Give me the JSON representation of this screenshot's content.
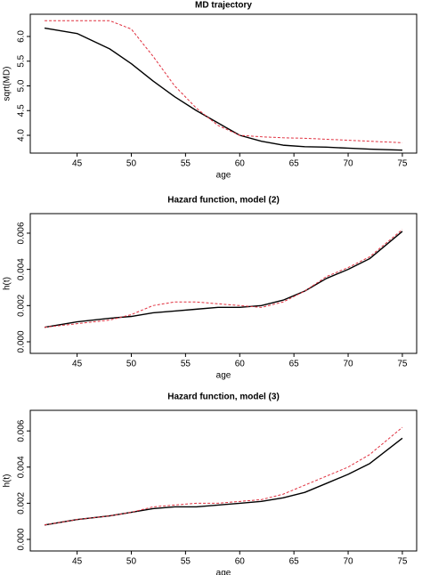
{
  "chart_data": [
    {
      "type": "line",
      "title": "MD trajectory",
      "x_label": "age",
      "y_label": "sqrt(MD)",
      "x": [
        42,
        45,
        48,
        50,
        52,
        54,
        56,
        58,
        60,
        62,
        64,
        66,
        68,
        70,
        72,
        75
      ],
      "series": [
        {
          "color": "#000000",
          "dashed": false,
          "values": [
            6.17,
            6.06,
            5.75,
            5.45,
            5.1,
            4.78,
            4.5,
            4.25,
            4.0,
            3.88,
            3.8,
            3.77,
            3.76,
            3.74,
            3.72,
            3.7
          ]
        },
        {
          "color": "#e0303f",
          "dashed": true,
          "values": [
            6.32,
            6.32,
            6.32,
            6.15,
            5.6,
            5.0,
            4.55,
            4.2,
            4.0,
            3.97,
            3.95,
            3.94,
            3.92,
            3.9,
            3.88,
            3.85
          ]
        }
      ],
      "xlim": [
        40.68,
        76.32
      ],
      "xticks": [
        45,
        50,
        55,
        60,
        65,
        70,
        75
      ],
      "ylim": [
        3.64,
        6.45
      ],
      "yticks": [
        {
          "value": 4,
          "label": "4.0"
        },
        4.5,
        {
          "value": 5,
          "label": "5.0"
        },
        5.5,
        {
          "value": 6,
          "label": "6.0"
        }
      ]
    },
    {
      "type": "line",
      "title": "Hazard function, model (2)",
      "x_label": "age",
      "y_label": "h(t)",
      "x": [
        42,
        45,
        48,
        50,
        52,
        54,
        56,
        58,
        60,
        62,
        64,
        66,
        68,
        70,
        72,
        75
      ],
      "series": [
        {
          "color": "#000000",
          "dashed": false,
          "values": [
            0.0008,
            0.0011,
            0.0013,
            0.0014,
            0.0016,
            0.0017,
            0.0018,
            0.0019,
            0.0019,
            0.002,
            0.0023,
            0.0028,
            0.0035,
            0.004,
            0.0046,
            0.0061
          ]
        },
        {
          "color": "#e0303f",
          "dashed": true,
          "values": [
            0.0008,
            0.001,
            0.0012,
            0.0015,
            0.002,
            0.0022,
            0.0022,
            0.0021,
            0.002,
            0.0019,
            0.0022,
            0.0028,
            0.0036,
            0.0041,
            0.0047,
            0.0062
          ]
        }
      ],
      "xlim": [
        40.68,
        76.32
      ],
      "xticks": [
        45,
        50,
        55,
        60,
        65,
        70,
        75
      ],
      "ylim": [
        -0.00064,
        0.00708
      ],
      "yticks": [
        {
          "value": 0,
          "label": "0.000"
        },
        {
          "value": 0.002,
          "label": "0.002"
        },
        {
          "value": 0.004,
          "label": "0.004"
        },
        {
          "value": 0.006,
          "label": "0.006"
        }
      ]
    },
    {
      "type": "line",
      "title": "Hazard function, model (3)",
      "x_label": "age",
      "y_label": "h(t)",
      "x": [
        42,
        45,
        48,
        50,
        52,
        54,
        56,
        58,
        60,
        62,
        64,
        66,
        68,
        70,
        72,
        75
      ],
      "series": [
        {
          "color": "#000000",
          "dashed": false,
          "values": [
            0.0008,
            0.0011,
            0.0013,
            0.0015,
            0.0017,
            0.0018,
            0.0018,
            0.0019,
            0.002,
            0.0021,
            0.0023,
            0.0026,
            0.0031,
            0.0036,
            0.0042,
            0.0056
          ]
        },
        {
          "color": "#e0303f",
          "dashed": true,
          "values": [
            0.0008,
            0.0011,
            0.0013,
            0.0015,
            0.0018,
            0.0019,
            0.002,
            0.002,
            0.0021,
            0.0022,
            0.0025,
            0.003,
            0.0035,
            0.004,
            0.0047,
            0.0062
          ]
        }
      ],
      "xlim": [
        40.68,
        76.32
      ],
      "xticks": [
        45,
        50,
        55,
        60,
        65,
        70,
        75
      ],
      "ylim": [
        -0.00064,
        0.00714
      ],
      "yticks": [
        {
          "value": 0,
          "label": "0.000"
        },
        {
          "value": 0.002,
          "label": "0.002"
        },
        {
          "value": 0.004,
          "label": "0.004"
        },
        {
          "value": 0.006,
          "label": "0.006"
        }
      ]
    }
  ]
}
